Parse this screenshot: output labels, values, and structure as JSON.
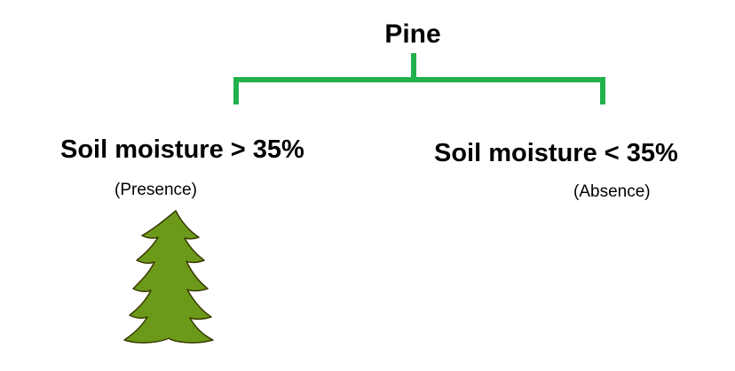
{
  "diagram": {
    "root": {
      "label": "Pine"
    },
    "branches": [
      {
        "condition": "Soil moisture > 35%",
        "outcome": "(Presence)",
        "icon": "pine-tree-icon"
      },
      {
        "condition": "Soil moisture < 35%",
        "outcome": "(Absence)"
      }
    ],
    "colors": {
      "connector": "#22b14c",
      "tree_fill": "#6b9a1a",
      "tree_outline": "#3a3a00"
    }
  }
}
